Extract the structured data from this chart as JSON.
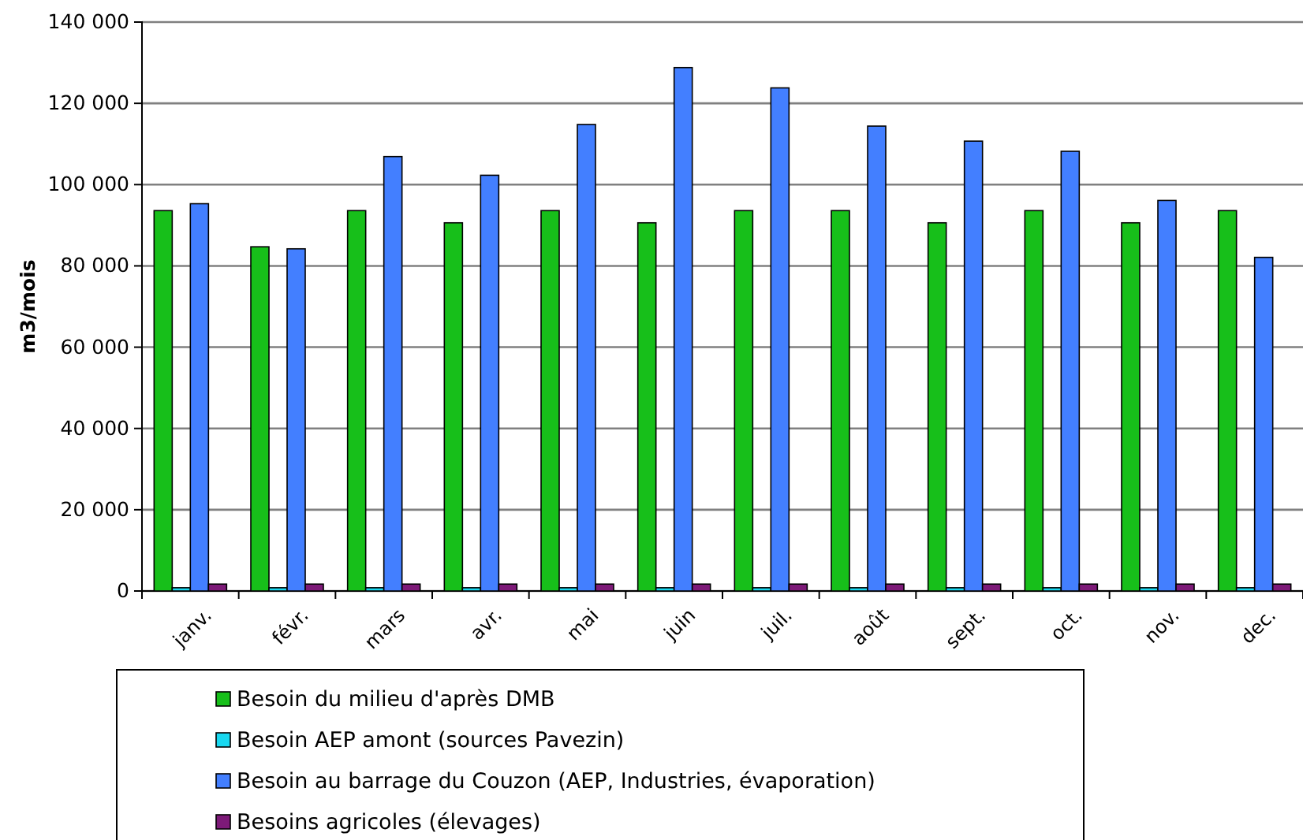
{
  "chart_data": {
    "type": "bar",
    "ylabel": "m3/mois",
    "categories": [
      "janv.",
      "févr.",
      "mars",
      "avr.",
      "mai",
      "juin",
      "juil.",
      "août",
      "sept.",
      "oct.",
      "nov.",
      "dec."
    ],
    "series": [
      {
        "name": "Besoin du milieu d'après DMB",
        "color": "#17bf1a",
        "values": [
          93600,
          84700,
          93600,
          90600,
          93600,
          90600,
          93600,
          93600,
          90600,
          93600,
          90600,
          93600
        ]
      },
      {
        "name": "Besoin AEP amont (sources Pavezin)",
        "color": "#19d8f0",
        "values": [
          800,
          800,
          800,
          800,
          800,
          800,
          800,
          800,
          800,
          800,
          800,
          800
        ]
      },
      {
        "name": "Besoin au barrage du Couzon (AEP, Industries, évaporation)",
        "color": "#437fff",
        "values": [
          95300,
          84200,
          106900,
          102300,
          114800,
          128800,
          123800,
          114400,
          110700,
          108200,
          96100,
          82100
        ]
      },
      {
        "name": "Besoins agricoles (élevages)",
        "color": "#7d1a78",
        "values": [
          1700,
          1700,
          1700,
          1700,
          1700,
          1700,
          1700,
          1700,
          1700,
          1700,
          1700,
          1700
        ]
      }
    ],
    "ylim": [
      0,
      140000
    ],
    "yticks": [
      {
        "value": 0,
        "label": "0"
      },
      {
        "value": 20000,
        "label": "20 000"
      },
      {
        "value": 40000,
        "label": "40 000"
      },
      {
        "value": 60000,
        "label": "60 000"
      },
      {
        "value": 80000,
        "label": "80 000"
      },
      {
        "value": 100000,
        "label": "100 000"
      },
      {
        "value": 120000,
        "label": "120 000"
      },
      {
        "value": 140000,
        "label": "140 000"
      }
    ],
    "grid": "y",
    "legend": "bottom"
  }
}
